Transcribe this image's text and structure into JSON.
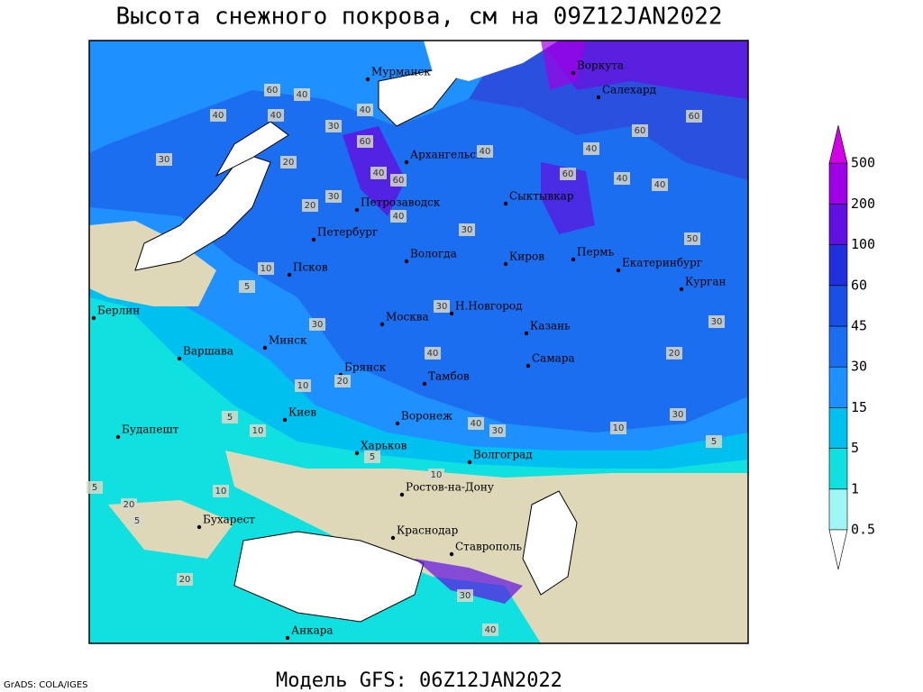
{
  "header": {
    "title": "Высота снежного покрова, см на 09Z12JAN2022"
  },
  "map": {
    "cities": [
      "Мурманск",
      "Воркута",
      "Салехард",
      "Архангельск",
      "Сыктывкар",
      "Петрозаводск",
      "Петербург",
      "Вологда",
      "Киров",
      "Пермь",
      "Екатеринбург",
      "Курган",
      "Псков",
      "Н.Новгород",
      "Казань",
      "Москва",
      "Берлин",
      "Варшава",
      "Минск",
      "Самара",
      "Брянск",
      "Тамбов",
      "Воронеж",
      "Киев",
      "Будапешт",
      "Харьков",
      "Волгоград",
      "Ростов-на-Дону",
      "Бухарест",
      "Краснодар",
      "Ставрополь",
      "Анкара"
    ],
    "contour_labels": [
      60,
      40,
      40,
      40,
      30,
      30,
      20,
      40,
      60,
      40,
      30,
      20,
      40,
      60,
      60,
      40,
      40,
      60,
      40,
      60,
      40,
      30,
      50,
      10,
      5,
      30,
      30,
      40,
      30,
      20,
      10,
      5,
      10,
      5,
      20,
      40,
      30,
      10,
      20,
      30,
      10,
      5,
      5,
      10,
      20,
      5,
      40,
      30
    ]
  },
  "legend": {
    "levels": [
      0.5,
      1,
      5,
      15,
      30,
      45,
      60,
      100,
      200,
      500
    ],
    "colors": [
      "#ffffff",
      "#a0f5f5",
      "#10e0e0",
      "#00c0f0",
      "#1e90ff",
      "#1c6ef0",
      "#1850e6",
      "#2030dc",
      "#6010e0",
      "#a000e6",
      "#d200e6"
    ]
  },
  "footer": {
    "credit": "GrADS: COLA/IGES",
    "model": "Модель GFS: 06Z12JAN2022"
  }
}
